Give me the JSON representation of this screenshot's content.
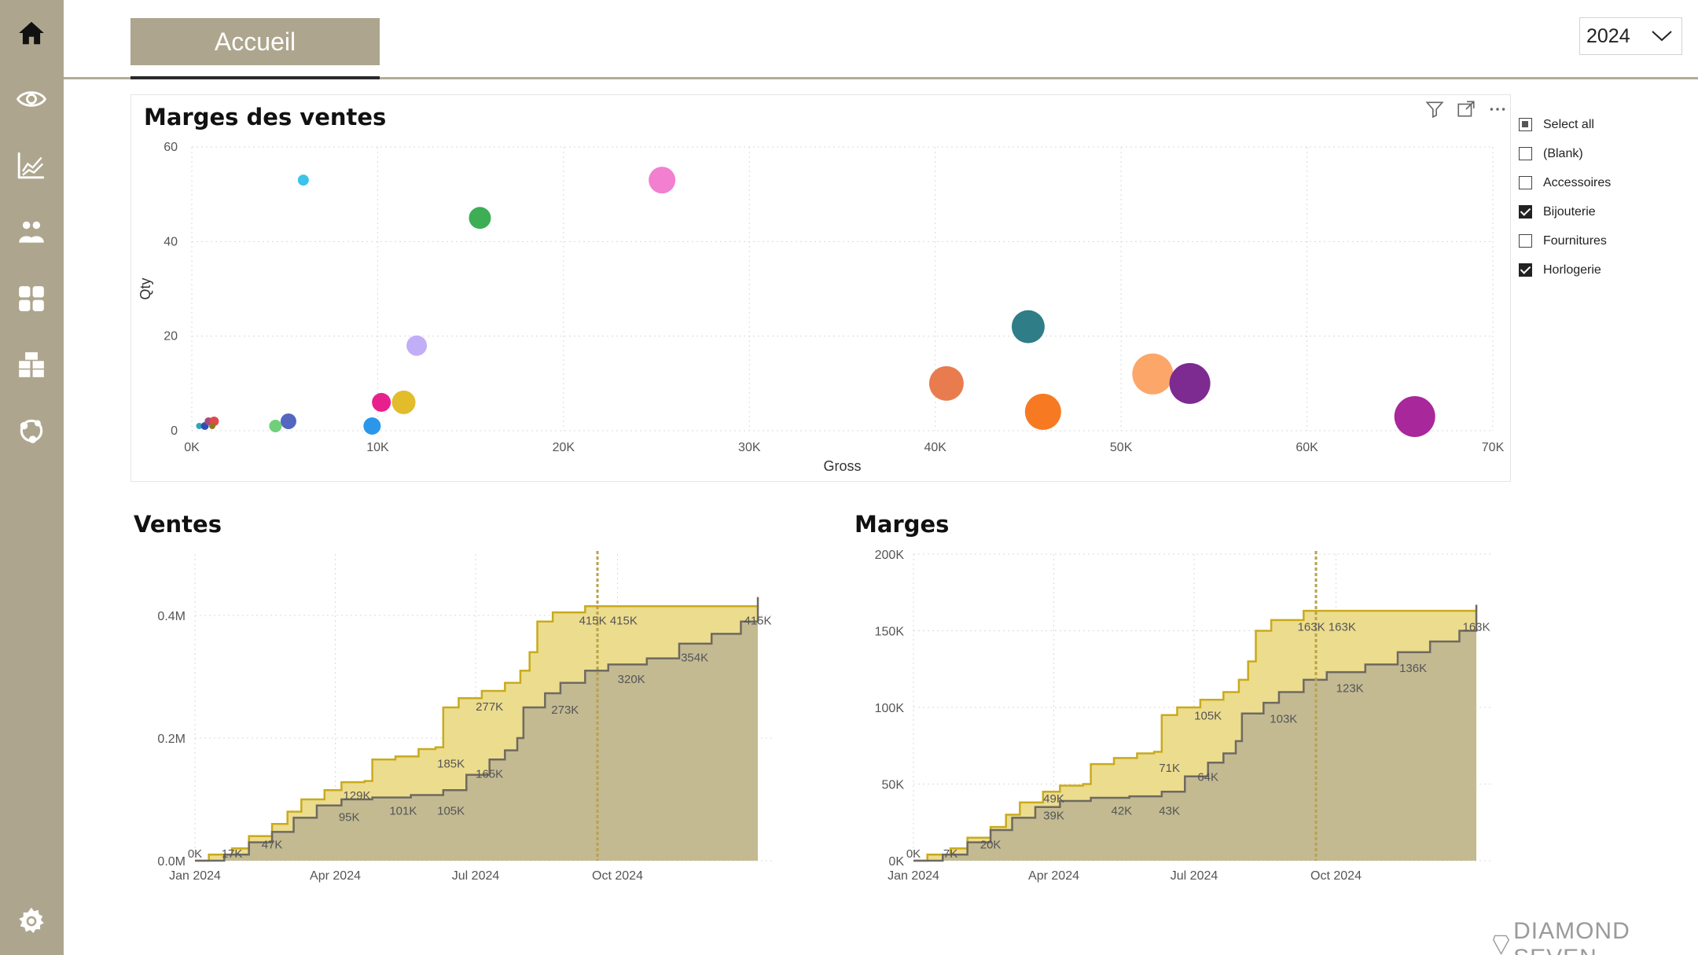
{
  "nav": {
    "items": [
      {
        "name": "home-icon"
      },
      {
        "name": "eye-icon"
      },
      {
        "name": "line-chart-icon"
      },
      {
        "name": "people-icon"
      },
      {
        "name": "grid-icon"
      },
      {
        "name": "boxes-icon"
      },
      {
        "name": "network-icon"
      }
    ],
    "settings": {
      "name": "gear-icon"
    }
  },
  "header": {
    "tab_label": "Accueil",
    "year_value": "2024"
  },
  "colors": {
    "sidebar": "#ada58e",
    "gold_line": "#c9aa1e",
    "gold_fill": "#ecdc8e",
    "dark_line": "#6e6a60",
    "dark_fill": "#c3ba92"
  },
  "scatter": {
    "title": "Marges des ventes",
    "toolbar": [
      "filter-icon",
      "focus-mode-icon",
      "more-options-icon"
    ]
  },
  "slicer": {
    "items": [
      {
        "label": "Select all",
        "state": "partial"
      },
      {
        "label": "(Blank)",
        "state": "unchecked"
      },
      {
        "label": "Accessoires",
        "state": "unchecked"
      },
      {
        "label": "Bijouterie",
        "state": "checked"
      },
      {
        "label": "Fournitures",
        "state": "unchecked"
      },
      {
        "label": "Horlogerie",
        "state": "checked"
      }
    ]
  },
  "ventes": {
    "title": "Ventes"
  },
  "marges": {
    "title": "Marges"
  },
  "footer": {
    "logo_text": "DIAMOND SEVEN"
  },
  "chart_data": [
    {
      "type": "scatter",
      "title": "Marges des ventes",
      "xlabel": "Gross",
      "ylabel": "Qty",
      "xlim": [
        0,
        70000
      ],
      "ylim": [
        0,
        60
      ],
      "xticks": [
        "0K",
        "10K",
        "20K",
        "30K",
        "40K",
        "50K",
        "60K",
        "70K"
      ],
      "yticks": [
        "0",
        "20",
        "40",
        "60"
      ],
      "grid": true,
      "points": [
        {
          "x": 6000,
          "y": 53,
          "size": 7,
          "color": "#3cc3e9"
        },
        {
          "x": 15500,
          "y": 45,
          "size": 14,
          "color": "#3dae55"
        },
        {
          "x": 25300,
          "y": 53,
          "size": 17,
          "color": "#f37fd0"
        },
        {
          "x": 12100,
          "y": 18,
          "size": 13,
          "color": "#c2aef7"
        },
        {
          "x": 10200,
          "y": 6,
          "size": 12,
          "color": "#e8208e"
        },
        {
          "x": 11400,
          "y": 6,
          "size": 15,
          "color": "#e2bc2a"
        },
        {
          "x": 9700,
          "y": 1,
          "size": 11,
          "color": "#2a97ea"
        },
        {
          "x": 5200,
          "y": 2,
          "size": 10,
          "color": "#5566c0"
        },
        {
          "x": 4500,
          "y": 1,
          "size": 8,
          "color": "#6fd07a"
        },
        {
          "x": 400,
          "y": 1,
          "size": 4,
          "color": "#2fa7b8"
        },
        {
          "x": 700,
          "y": 1,
          "size": 5,
          "color": "#2c4eb4"
        },
        {
          "x": 900,
          "y": 2,
          "size": 5,
          "color": "#a14b7a"
        },
        {
          "x": 1200,
          "y": 2,
          "size": 6,
          "color": "#e0474e"
        },
        {
          "x": 1100,
          "y": 1,
          "size": 4,
          "color": "#8c7a1e"
        },
        {
          "x": 40600,
          "y": 10,
          "size": 22,
          "color": "#e97c4f"
        },
        {
          "x": 45000,
          "y": 22,
          "size": 21,
          "color": "#2f7d87"
        },
        {
          "x": 45800,
          "y": 4,
          "size": 23,
          "color": "#f77a23"
        },
        {
          "x": 51700,
          "y": 12,
          "size": 26,
          "color": "#fca66a"
        },
        {
          "x": 53700,
          "y": 10,
          "size": 26,
          "color": "#7d2a91"
        },
        {
          "x": 65800,
          "y": 3,
          "size": 26,
          "color": "#a8279a"
        }
      ]
    },
    {
      "type": "area",
      "title": "Ventes",
      "ylim": [
        0,
        0.5
      ],
      "yunit": "M",
      "xlim": [
        "2024-01-01",
        "2025-01-01"
      ],
      "xticks": [
        {
          "label": "Jan 2024",
          "x": "2024-01-01"
        },
        {
          "label": "Apr 2024",
          "x": "2024-04-01"
        },
        {
          "label": "Jul 2024",
          "x": "2024-07-01"
        },
        {
          "label": "Oct 2024",
          "x": "2024-10-01"
        }
      ],
      "yticks": [
        "0.0M",
        "0.2M",
        "0.4M"
      ],
      "ytick_values": [
        0,
        0.2,
        0.4
      ],
      "marker_date": "2024-09-18",
      "series": [
        {
          "style": "upper",
          "points": [
            [
              "2024-01-01",
              0
            ],
            [
              "2024-01-10",
              0.01
            ],
            [
              "2024-01-25",
              0.02
            ],
            [
              "2024-02-05",
              0.04
            ],
            [
              "2024-02-20",
              0.06
            ],
            [
              "2024-03-01",
              0.08
            ],
            [
              "2024-03-10",
              0.1
            ],
            [
              "2024-03-25",
              0.115
            ],
            [
              "2024-04-05",
              0.128
            ],
            [
              "2024-04-20",
              0.13
            ],
            [
              "2024-04-25",
              0.165
            ],
            [
              "2024-05-10",
              0.17
            ],
            [
              "2024-05-25",
              0.182
            ],
            [
              "2024-06-05",
              0.185
            ],
            [
              "2024-06-10",
              0.25
            ],
            [
              "2024-06-20",
              0.265
            ],
            [
              "2024-07-05",
              0.277
            ],
            [
              "2024-07-20",
              0.29
            ],
            [
              "2024-07-30",
              0.31
            ],
            [
              "2024-08-05",
              0.34
            ],
            [
              "2024-08-10",
              0.39
            ],
            [
              "2024-08-20",
              0.405
            ],
            [
              "2024-09-10",
              0.415
            ],
            [
              "2024-12-31",
              0.415
            ]
          ]
        },
        {
          "style": "lower",
          "points": [
            [
              "2024-01-01",
              0
            ],
            [
              "2024-01-20",
              0.01
            ],
            [
              "2024-02-05",
              0.03
            ],
            [
              "2024-02-20",
              0.047
            ],
            [
              "2024-03-05",
              0.07
            ],
            [
              "2024-03-20",
              0.09
            ],
            [
              "2024-04-05",
              0.1
            ],
            [
              "2024-04-25",
              0.103
            ],
            [
              "2024-05-20",
              0.107
            ],
            [
              "2024-06-10",
              0.115
            ],
            [
              "2024-06-25",
              0.14
            ],
            [
              "2024-07-10",
              0.165
            ],
            [
              "2024-07-20",
              0.18
            ],
            [
              "2024-07-28",
              0.2
            ],
            [
              "2024-08-01",
              0.25
            ],
            [
              "2024-08-15",
              0.273
            ],
            [
              "2024-08-25",
              0.29
            ],
            [
              "2024-09-10",
              0.31
            ],
            [
              "2024-09-25",
              0.32
            ],
            [
              "2024-10-20",
              0.33
            ],
            [
              "2024-11-10",
              0.354
            ],
            [
              "2024-12-01",
              0.37
            ],
            [
              "2024-12-20",
              0.39
            ],
            [
              "2024-12-31",
              0.43
            ]
          ]
        }
      ],
      "data_labels": [
        {
          "text": "0K",
          "x": "2024-01-01",
          "y": 0.005
        },
        {
          "text": "17K",
          "x": "2024-01-25",
          "y": 0.005
        },
        {
          "text": "47K",
          "x": "2024-02-20",
          "y": 0.02
        },
        {
          "text": "129K",
          "x": "2024-04-15",
          "y": 0.1
        },
        {
          "text": "95K",
          "x": "2024-04-10",
          "y": 0.065
        },
        {
          "text": "101K",
          "x": "2024-05-15",
          "y": 0.075
        },
        {
          "text": "105K",
          "x": "2024-06-15",
          "y": 0.075
        },
        {
          "text": "185K",
          "x": "2024-06-15",
          "y": 0.152
        },
        {
          "text": "165K",
          "x": "2024-07-10",
          "y": 0.135
        },
        {
          "text": "277K",
          "x": "2024-07-10",
          "y": 0.245
        },
        {
          "text": "273K",
          "x": "2024-08-28",
          "y": 0.24
        },
        {
          "text": "415K",
          "x": "2024-09-15",
          "y": 0.385
        },
        {
          "text": "415K",
          "x": "2024-10-05",
          "y": 0.385
        },
        {
          "text": "320K",
          "x": "2024-10-10",
          "y": 0.29
        },
        {
          "text": "354K",
          "x": "2024-11-20",
          "y": 0.325
        },
        {
          "text": "415K",
          "x": "2024-12-31",
          "y": 0.385
        }
      ]
    },
    {
      "type": "area",
      "title": "Marges",
      "ylim": [
        0,
        200
      ],
      "yunit": "K",
      "xlim": [
        "2024-01-01",
        "2025-01-01"
      ],
      "xticks": [
        {
          "label": "Jan 2024",
          "x": "2024-01-01"
        },
        {
          "label": "Apr 2024",
          "x": "2024-04-01"
        },
        {
          "label": "Jul 2024",
          "x": "2024-07-01"
        },
        {
          "label": "Oct 2024",
          "x": "2024-10-01"
        }
      ],
      "yticks": [
        "0K",
        "50K",
        "100K",
        "150K",
        "200K"
      ],
      "ytick_values": [
        0,
        50,
        100,
        150,
        200
      ],
      "marker_date": "2024-09-18",
      "series": [
        {
          "style": "upper",
          "points": [
            [
              "2024-01-01",
              0
            ],
            [
              "2024-01-10",
              4
            ],
            [
              "2024-01-25",
              8
            ],
            [
              "2024-02-05",
              15
            ],
            [
              "2024-02-20",
              22
            ],
            [
              "2024-03-01",
              30
            ],
            [
              "2024-03-10",
              38
            ],
            [
              "2024-03-25",
              45
            ],
            [
              "2024-04-05",
              49
            ],
            [
              "2024-04-20",
              50
            ],
            [
              "2024-04-25",
              63
            ],
            [
              "2024-05-10",
              67
            ],
            [
              "2024-05-25",
              70
            ],
            [
              "2024-06-05",
              71
            ],
            [
              "2024-06-10",
              95
            ],
            [
              "2024-06-20",
              100
            ],
            [
              "2024-07-05",
              105
            ],
            [
              "2024-07-20",
              110
            ],
            [
              "2024-07-30",
              118
            ],
            [
              "2024-08-05",
              130
            ],
            [
              "2024-08-10",
              150
            ],
            [
              "2024-08-20",
              157
            ],
            [
              "2024-09-10",
              163
            ],
            [
              "2024-12-31",
              163
            ]
          ]
        },
        {
          "style": "lower",
          "points": [
            [
              "2024-01-01",
              0
            ],
            [
              "2024-01-20",
              4
            ],
            [
              "2024-02-05",
              12
            ],
            [
              "2024-02-20",
              20
            ],
            [
              "2024-03-05",
              28
            ],
            [
              "2024-03-20",
              35
            ],
            [
              "2024-04-05",
              39
            ],
            [
              "2024-04-25",
              41
            ],
            [
              "2024-05-20",
              42
            ],
            [
              "2024-06-10",
              45
            ],
            [
              "2024-06-25",
              55
            ],
            [
              "2024-07-10",
              64
            ],
            [
              "2024-07-20",
              70
            ],
            [
              "2024-07-28",
              78
            ],
            [
              "2024-08-01",
              96
            ],
            [
              "2024-08-15",
              103
            ],
            [
              "2024-08-25",
              110
            ],
            [
              "2024-09-10",
              118
            ],
            [
              "2024-09-25",
              123
            ],
            [
              "2024-10-20",
              128
            ],
            [
              "2024-11-10",
              136
            ],
            [
              "2024-12-01",
              143
            ],
            [
              "2024-12-20",
              150
            ],
            [
              "2024-12-31",
              167
            ]
          ]
        }
      ],
      "data_labels": [
        {
          "text": "0K",
          "x": "2024-01-01",
          "y": 2
        },
        {
          "text": "7K",
          "x": "2024-01-25",
          "y": 2
        },
        {
          "text": "20K",
          "x": "2024-02-20",
          "y": 8
        },
        {
          "text": "49K",
          "x": "2024-04-01",
          "y": 38
        },
        {
          "text": "39K",
          "x": "2024-04-01",
          "y": 27
        },
        {
          "text": "42K",
          "x": "2024-05-15",
          "y": 30
        },
        {
          "text": "43K",
          "x": "2024-06-15",
          "y": 30
        },
        {
          "text": "71K",
          "x": "2024-06-15",
          "y": 58
        },
        {
          "text": "64K",
          "x": "2024-07-10",
          "y": 52
        },
        {
          "text": "105K",
          "x": "2024-07-10",
          "y": 92
        },
        {
          "text": "103K",
          "x": "2024-08-28",
          "y": 90
        },
        {
          "text": "163K",
          "x": "2024-09-15",
          "y": 150
        },
        {
          "text": "163K",
          "x": "2024-10-05",
          "y": 150
        },
        {
          "text": "123K",
          "x": "2024-10-10",
          "y": 110
        },
        {
          "text": "136K",
          "x": "2024-11-20",
          "y": 123
        },
        {
          "text": "163K",
          "x": "2024-12-31",
          "y": 150
        }
      ]
    }
  ]
}
